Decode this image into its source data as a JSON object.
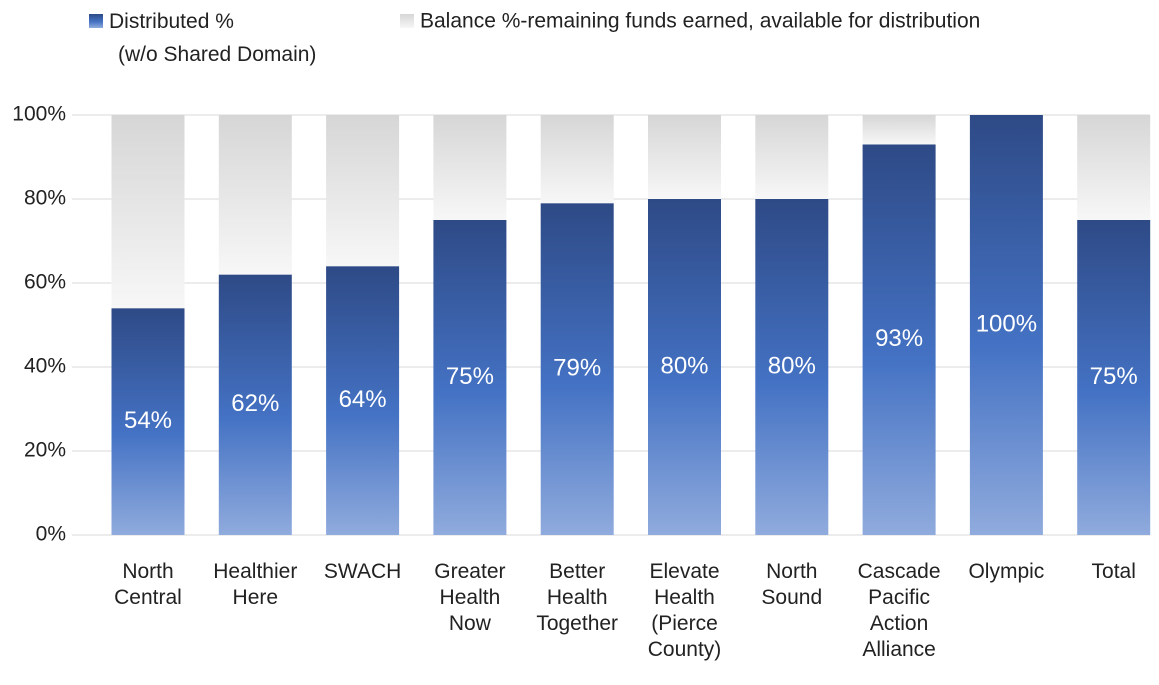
{
  "chart_data": {
    "type": "stacked_bar",
    "categories": [
      "North Central",
      "Healthier Here",
      "SWACH",
      "Greater Health Now",
      "Better Health Together",
      "Elevate Health (Pierce County)",
      "North Sound",
      "Cascade Pacific Action Alliance",
      "Olympic",
      "Total"
    ],
    "series": [
      {
        "name": "Distributed % (w/o Shared Domain)",
        "color": "#4472c4",
        "values": [
          54,
          62,
          64,
          75,
          79,
          80,
          80,
          93,
          100,
          75
        ],
        "value_labels": [
          "54%",
          "62%",
          "64%",
          "75%",
          "79%",
          "80%",
          "80%",
          "93%",
          "100%",
          "75%"
        ]
      },
      {
        "name": "Balance %-remaining funds earned, available for distribution",
        "color": "#d9d9d9",
        "values": [
          46,
          38,
          36,
          25,
          21,
          20,
          20,
          7,
          0,
          25
        ]
      }
    ],
    "ylim": [
      0,
      100
    ],
    "yticks": [
      {
        "value": 0,
        "label": "0%"
      },
      {
        "value": 20,
        "label": "20%"
      },
      {
        "value": 40,
        "label": "40%"
      },
      {
        "value": 60,
        "label": "60%"
      },
      {
        "value": 80,
        "label": "80%"
      },
      {
        "value": 100,
        "label": "100%"
      }
    ],
    "grid": true,
    "legend": "top"
  }
}
